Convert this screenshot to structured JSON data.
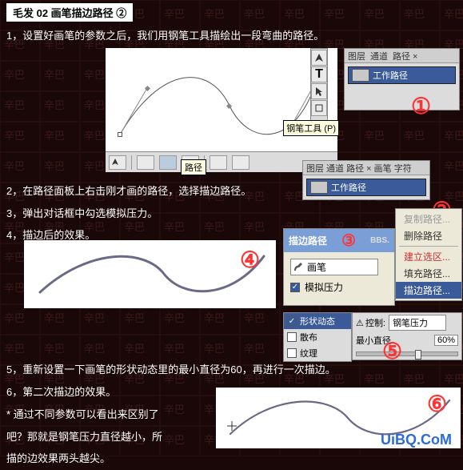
{
  "title": "毛发 02 画笔描边路径 ②",
  "steps": {
    "s1": "1，设置好画笔的参数之后，我们用钢笔工具描绘出一段弯曲的路径。",
    "s2": "2，在路径面板上右击刚才画的路径，选择描边路径。",
    "s3": "3，弹出对话框中勾选模拟压力。",
    "s4": "4，描边后的效果。",
    "s5": "5，重新设置一下画笔的形状动态里的最小直径为60，再进行一次描边。",
    "s6": "6，第二次描边的效果。",
    "note1": "* 通过不同参数可以看出来区别了",
    "note2": "吧？那就是钢笔压力直径越小，所",
    "note3": "描的边效果两头越尖。"
  },
  "pen_tooltip": "钢笔工具 (P)",
  "path_label": "路径",
  "panel1": {
    "tabs_layer": "图层",
    "tabs_channel": "通道",
    "tabs_path": "路径 ×",
    "work_path": "工作路径"
  },
  "panel2": {
    "tabs": "图层 通道 路径 × 画笔 字符",
    "work_path": "工作路径"
  },
  "ctx": {
    "copy": "复制路径...",
    "del": "删除路径",
    "mksel": "建立选区...",
    "fill": "填充路径...",
    "stroke": "描边路径..."
  },
  "dlg": {
    "title": "描边路径",
    "bss": "BBS.",
    "brush_lbl": "画笔",
    "sim": "模拟压力"
  },
  "brush": {
    "shape": "形状动态",
    "scatter": "散布",
    "tex": "纹理",
    "ctrl_lbl": "控制:",
    "ctrl_val": "钢笔压力",
    "min_d": "最小直径",
    "pct": "60%"
  },
  "nums": {
    "n1": "①",
    "n2": "②",
    "n3": "③",
    "n4": "④",
    "n5": "⑤",
    "n6": "⑥"
  },
  "url": "UiBQ.CoM",
  "wm": "辛巴"
}
